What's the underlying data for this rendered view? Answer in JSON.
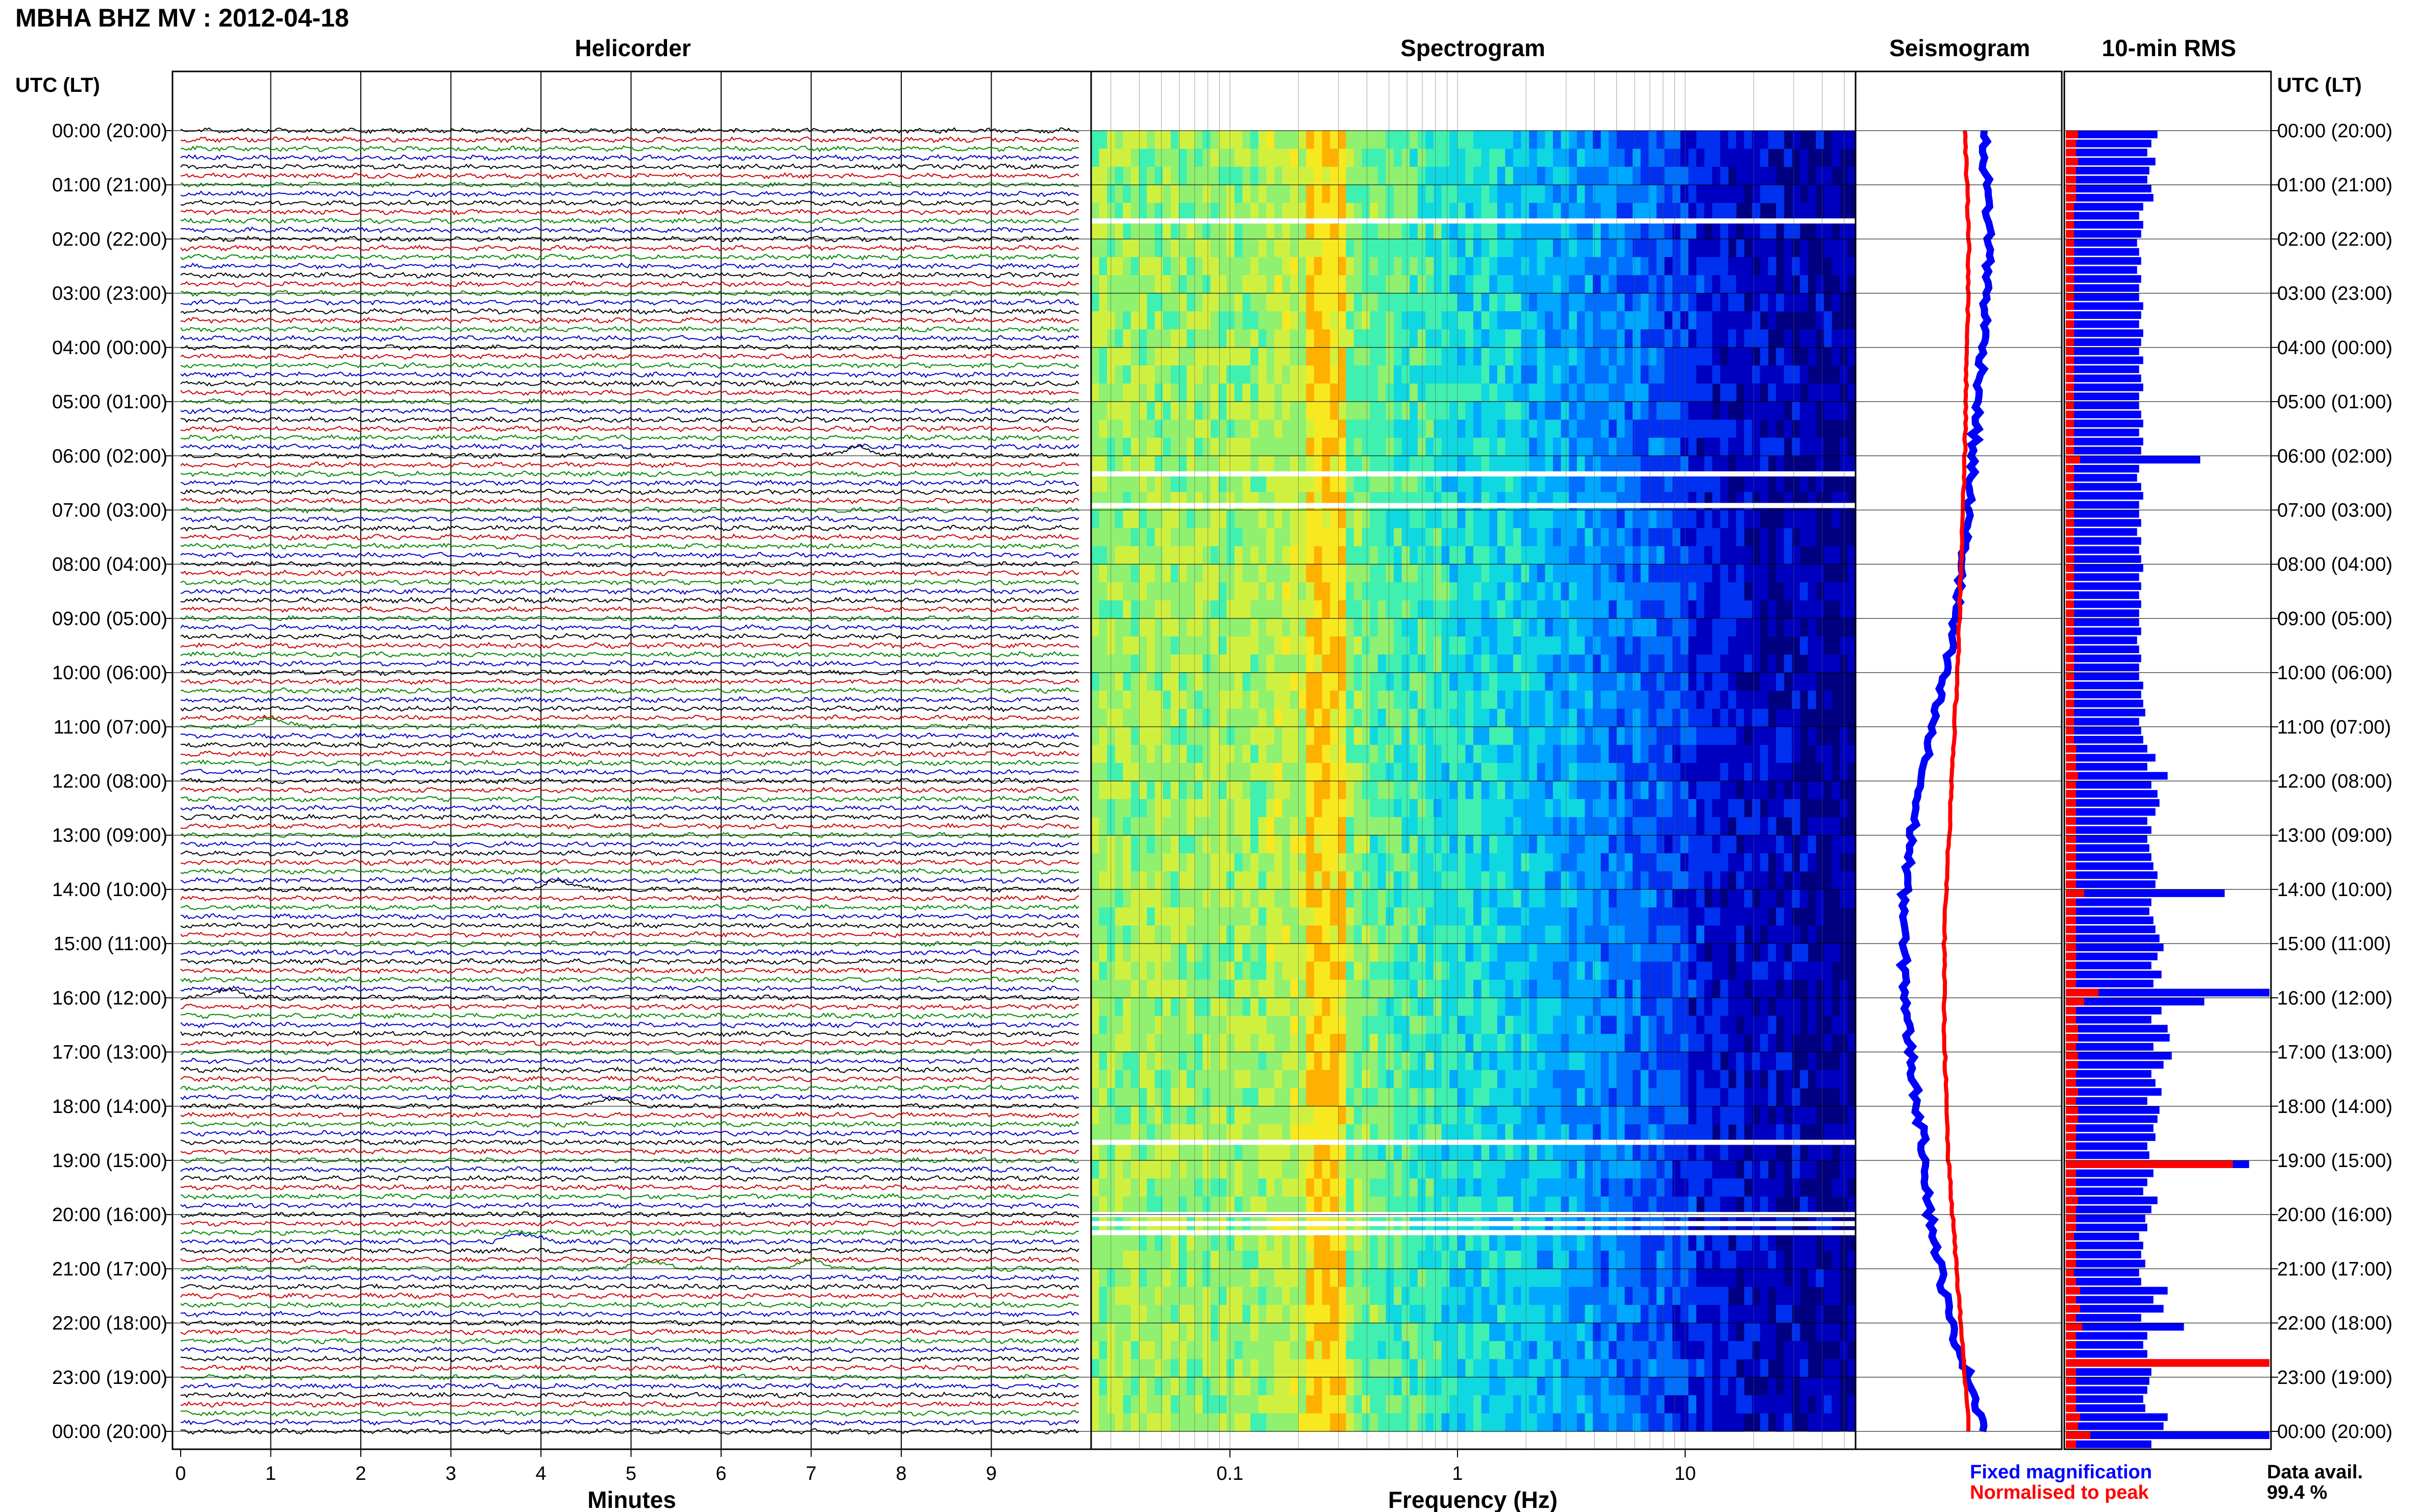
{
  "station_title": "MBHA BHZ MV : 2012-04-18",
  "panels": {
    "helicorder": "Helicorder",
    "spectrogram": "Spectrogram",
    "seismogram": "Seismogram",
    "rms": "10-min RMS"
  },
  "time_axis_title": "UTC (LT)",
  "time_labels": [
    "00:00 (20:00)",
    "01:00 (21:00)",
    "02:00 (22:00)",
    "03:00 (23:00)",
    "04:00 (00:00)",
    "05:00 (01:00)",
    "06:00 (02:00)",
    "07:00 (03:00)",
    "08:00 (04:00)",
    "09:00 (05:00)",
    "10:00 (06:00)",
    "11:00 (07:00)",
    "12:00 (08:00)",
    "13:00 (09:00)",
    "14:00 (10:00)",
    "15:00 (11:00)",
    "16:00 (12:00)",
    "17:00 (13:00)",
    "18:00 (14:00)",
    "19:00 (15:00)",
    "20:00 (16:00)",
    "21:00 (17:00)",
    "22:00 (18:00)",
    "23:00 (19:00)",
    "00:00 (20:00)"
  ],
  "minutes_axis_label": "Minutes",
  "minute_ticks": [
    "0",
    "1",
    "2",
    "3",
    "4",
    "5",
    "6",
    "7",
    "8",
    "9"
  ],
  "frequency_axis_label": "Frequency (Hz)",
  "frequency_ticks": [
    "0.1",
    "1",
    "10"
  ],
  "legend": {
    "fixed": "Fixed magnification",
    "normalised": "Normalised to peak",
    "fixed_color": "#0000ff",
    "normalised_color": "#ff0000"
  },
  "data_avail_label": "Data avail.",
  "data_avail_value": "99.4 %",
  "colors": {
    "trace_cycle": [
      "#000000",
      "#cc0000",
      "#008800",
      "#0000cc"
    ],
    "rms_fixed": "#0000ff",
    "rms_normalised": "#ff0000"
  },
  "chart_data": [
    {
      "type": "line",
      "title": "Helicorder",
      "xlabel": "Minutes",
      "x_range_minutes": [
        0,
        10
      ],
      "y_range_hours_utc": [
        0,
        24
      ],
      "lines_per_hour": 6,
      "notable_events": [
        {
          "utc": "06:00",
          "minute": 7.5
        },
        {
          "utc": "11:00",
          "minute": 1.0
        },
        {
          "utc": "14:00",
          "minute": 4.2
        },
        {
          "utc": "16:00",
          "minute": 0.5
        },
        {
          "utc": "18:00",
          "minute": 4.8
        },
        {
          "utc": "20:30",
          "minute": 3.8
        },
        {
          "utc": "21:00",
          "minute": 5.2
        },
        {
          "utc": "21:00",
          "minute": 7.0
        }
      ]
    },
    {
      "type": "heatmap",
      "title": "Spectrogram",
      "xlabel": "Frequency (Hz)",
      "x_scale": "log",
      "x_range_hz": [
        0.02,
        50
      ],
      "dominant_band_hz": [
        0.2,
        0.3
      ],
      "gaps_utc": [
        "01:40",
        "06:20",
        "06:55",
        "18:40",
        "20:00",
        "20:10",
        "20:20"
      ]
    },
    {
      "type": "line",
      "title": "Seismogram",
      "x_range": [
        0,
        1
      ],
      "series": [
        {
          "name": "Fixed magnification",
          "x": [
            0.62,
            0.65,
            0.62,
            0.57,
            0.52,
            0.46,
            0.37,
            0.29,
            0.24,
            0.23,
            0.25,
            0.3,
            0.34,
            0.36,
            0.41,
            0.46,
            0.55,
            0.63
          ],
          "y_hours": [
            0,
            2,
            4,
            6,
            8,
            9.5,
            11,
            12.5,
            14,
            15,
            16.5,
            18,
            19,
            20,
            21,
            22,
            23,
            24
          ]
        },
        {
          "name": "Normalised to peak",
          "x": [
            0.53,
            0.55,
            0.54,
            0.53,
            0.51,
            0.5,
            0.48,
            0.46,
            0.44,
            0.43,
            0.43,
            0.44,
            0.45,
            0.47,
            0.49,
            0.51,
            0.53,
            0.55
          ],
          "y_hours": [
            0,
            2,
            4,
            6,
            8,
            9.5,
            11,
            12.5,
            14,
            15,
            16.5,
            18,
            19,
            20,
            21,
            22,
            23,
            24
          ]
        }
      ]
    },
    {
      "type": "bar",
      "title": "10-min RMS",
      "orientation": "horizontal",
      "bin_minutes": 10,
      "series": [
        {
          "name": "Fixed magnification",
          "values": [
            0.45,
            0.42,
            0.4,
            0.44,
            0.41,
            0.4,
            0.42,
            0.43,
            0.38,
            0.36,
            0.38,
            0.37,
            0.35,
            0.36,
            0.37,
            0.35,
            0.37,
            0.36,
            0.36,
            0.38,
            0.37,
            0.36,
            0.38,
            0.37,
            0.36,
            0.38,
            0.36,
            0.37,
            0.38,
            0.36,
            0.36,
            0.37,
            0.38,
            0.36,
            0.38,
            0.37,
            0.66,
            0.36,
            0.35,
            0.37,
            0.38,
            0.36,
            0.36,
            0.37,
            0.35,
            0.37,
            0.36,
            0.37,
            0.38,
            0.36,
            0.37,
            0.36,
            0.37,
            0.36,
            0.36,
            0.37,
            0.35,
            0.36,
            0.37,
            0.36,
            0.36,
            0.38,
            0.37,
            0.38,
            0.39,
            0.36,
            0.37,
            0.38,
            0.4,
            0.44,
            0.4,
            0.5,
            0.42,
            0.45,
            0.46,
            0.44,
            0.4,
            0.42,
            0.4,
            0.41,
            0.42,
            0.43,
            0.45,
            0.44,
            0.78,
            0.42,
            0.41,
            0.43,
            0.44,
            0.46,
            0.48,
            0.45,
            0.42,
            0.47,
            0.43,
            1.0,
            0.68,
            0.47,
            0.42,
            0.5,
            0.51,
            0.43,
            0.52,
            0.48,
            0.42,
            0.44,
            0.47,
            0.4,
            0.46,
            0.45,
            0.43,
            0.44,
            0.4,
            0.41,
            0.9,
            0.43,
            0.4,
            0.38,
            0.45,
            0.42,
            0.39,
            0.4,
            0.36,
            0.38,
            0.37,
            0.39,
            0.36,
            0.37,
            0.5,
            0.43,
            0.48,
            0.37,
            0.58,
            0.4,
            0.38,
            0.4,
            1.0,
            0.42,
            0.41,
            0.4,
            0.38,
            0.39,
            0.5,
            0.48,
            1.0,
            0.42
          ]
        },
        {
          "name": "Normalised to peak",
          "values": [
            0.06,
            0.05,
            0.05,
            0.06,
            0.05,
            0.05,
            0.05,
            0.05,
            0.04,
            0.04,
            0.04,
            0.04,
            0.04,
            0.04,
            0.04,
            0.04,
            0.04,
            0.04,
            0.04,
            0.04,
            0.04,
            0.04,
            0.04,
            0.04,
            0.04,
            0.04,
            0.04,
            0.04,
            0.04,
            0.04,
            0.04,
            0.04,
            0.04,
            0.04,
            0.04,
            0.04,
            0.07,
            0.04,
            0.04,
            0.04,
            0.04,
            0.04,
            0.04,
            0.04,
            0.04,
            0.04,
            0.04,
            0.04,
            0.04,
            0.04,
            0.04,
            0.04,
            0.04,
            0.04,
            0.04,
            0.04,
            0.04,
            0.04,
            0.04,
            0.04,
            0.04,
            0.04,
            0.04,
            0.04,
            0.04,
            0.04,
            0.04,
            0.04,
            0.05,
            0.05,
            0.05,
            0.06,
            0.05,
            0.05,
            0.05,
            0.05,
            0.05,
            0.05,
            0.05,
            0.05,
            0.05,
            0.05,
            0.05,
            0.05,
            0.09,
            0.05,
            0.05,
            0.05,
            0.05,
            0.05,
            0.05,
            0.05,
            0.05,
            0.05,
            0.05,
            0.16,
            0.09,
            0.05,
            0.05,
            0.06,
            0.06,
            0.05,
            0.06,
            0.06,
            0.05,
            0.05,
            0.06,
            0.05,
            0.06,
            0.06,
            0.05,
            0.05,
            0.05,
            0.05,
            0.82,
            0.05,
            0.05,
            0.05,
            0.06,
            0.05,
            0.05,
            0.05,
            0.04,
            0.05,
            0.05,
            0.05,
            0.04,
            0.05,
            0.07,
            0.05,
            0.07,
            0.05,
            0.08,
            0.05,
            0.05,
            0.05,
            1.0,
            0.05,
            0.05,
            0.05,
            0.05,
            0.05,
            0.07,
            0.06,
            0.12,
            0.05
          ]
        }
      ]
    }
  ]
}
